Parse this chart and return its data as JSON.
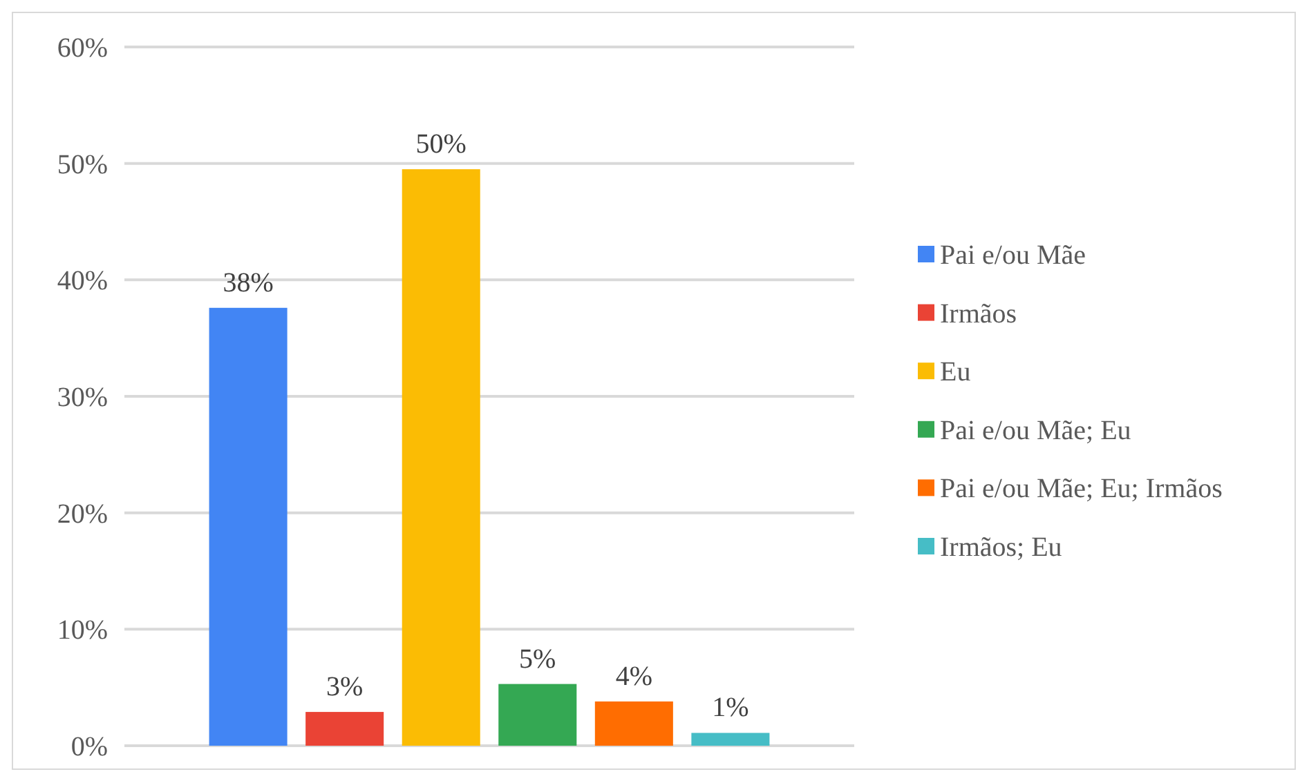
{
  "chart_data": {
    "type": "bar",
    "categories": [
      null
    ],
    "series": [
      {
        "name": "Pai e/ou Mãe",
        "color": "#4285f4",
        "values": [
          37.6
        ],
        "value_labels": [
          "38%"
        ]
      },
      {
        "name": "Irmãos",
        "color": "#ea4335",
        "values": [
          2.9
        ],
        "value_labels": [
          "3%"
        ]
      },
      {
        "name": "Eu",
        "color": "#fbbc04",
        "values": [
          49.5
        ],
        "value_labels": [
          "50%"
        ]
      },
      {
        "name": "Pai e/ou Mãe; Eu",
        "color": "#34a853",
        "values": [
          5.3
        ],
        "value_labels": [
          "5%"
        ]
      },
      {
        "name": "Pai e/ou Mãe; Eu; Irmãos",
        "color": "#ff6d01",
        "values": [
          3.8
        ],
        "value_labels": [
          "4%"
        ]
      },
      {
        "name": "Irmãos; Eu",
        "color": "#46bdc6",
        "values": [
          1.1
        ],
        "value_labels": [
          "1%"
        ]
      }
    ],
    "ylim": [
      0,
      60
    ],
    "yticks": [
      {
        "value": 0,
        "label": "0%"
      },
      {
        "value": 10,
        "label": "10%"
      },
      {
        "value": 20,
        "label": "20%"
      },
      {
        "value": 30,
        "label": "30%"
      },
      {
        "value": 40,
        "label": "40%"
      },
      {
        "value": 50,
        "label": "50%"
      },
      {
        "value": 60,
        "label": "60%"
      }
    ],
    "grid": "y",
    "legend": "right"
  }
}
